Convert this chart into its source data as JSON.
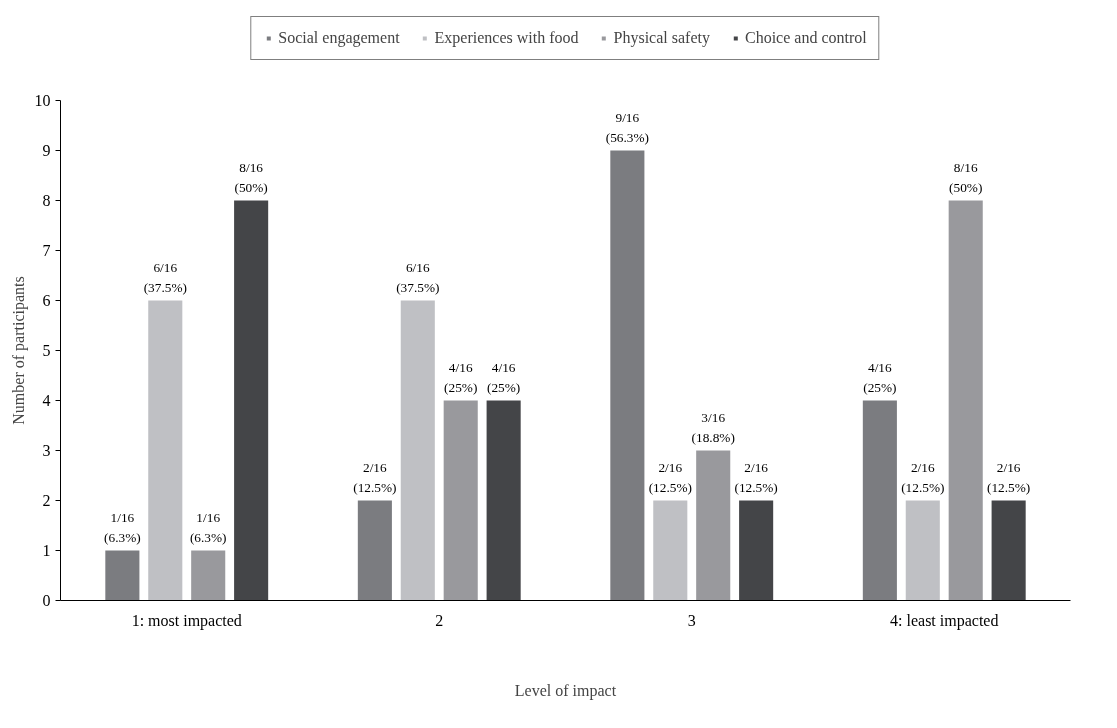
{
  "chart_data": {
    "type": "bar",
    "xlabel": "Level of impact",
    "ylabel": "Number of participants",
    "categories": [
      "1: most impacted",
      "2",
      "3",
      "4: least impacted"
    ],
    "series": [
      {
        "name": "Social engagement",
        "color": "#7b7c80",
        "values": [
          1,
          2,
          9,
          4
        ],
        "value_labels": [
          "1/16 (6.3%)",
          "2/16 (12.5%)",
          "9/16 (56.3%)",
          "4/16 (25%)"
        ]
      },
      {
        "name": "Experiences with food",
        "color": "#bfc0c4",
        "values": [
          6,
          6,
          2,
          2
        ],
        "value_labels": [
          "6/16 (37.5%)",
          "6/16 (37.5%)",
          "2/16 (12.5%)",
          "2/16 (12.5%)"
        ]
      },
      {
        "name": "Physical safety",
        "color": "#99999d",
        "values": [
          1,
          4,
          3,
          8
        ],
        "value_labels": [
          "1/16 (6.3%)",
          "4/16 (25%)",
          "3/16 (18.8%)",
          "8/16 (50%)"
        ]
      },
      {
        "name": "Choice and control",
        "color": "#444548",
        "values": [
          8,
          4,
          2,
          2
        ],
        "value_labels": [
          "8/16 (50%)",
          "4/16 (25%)",
          "2/16 (12.5%)",
          "2/16 (12.5%)"
        ]
      }
    ],
    "ylim": [
      0,
      10
    ],
    "yticks": [
      0,
      1,
      2,
      3,
      4,
      5,
      6,
      7,
      8,
      9,
      10
    ],
    "grid": false,
    "legend": "top"
  }
}
